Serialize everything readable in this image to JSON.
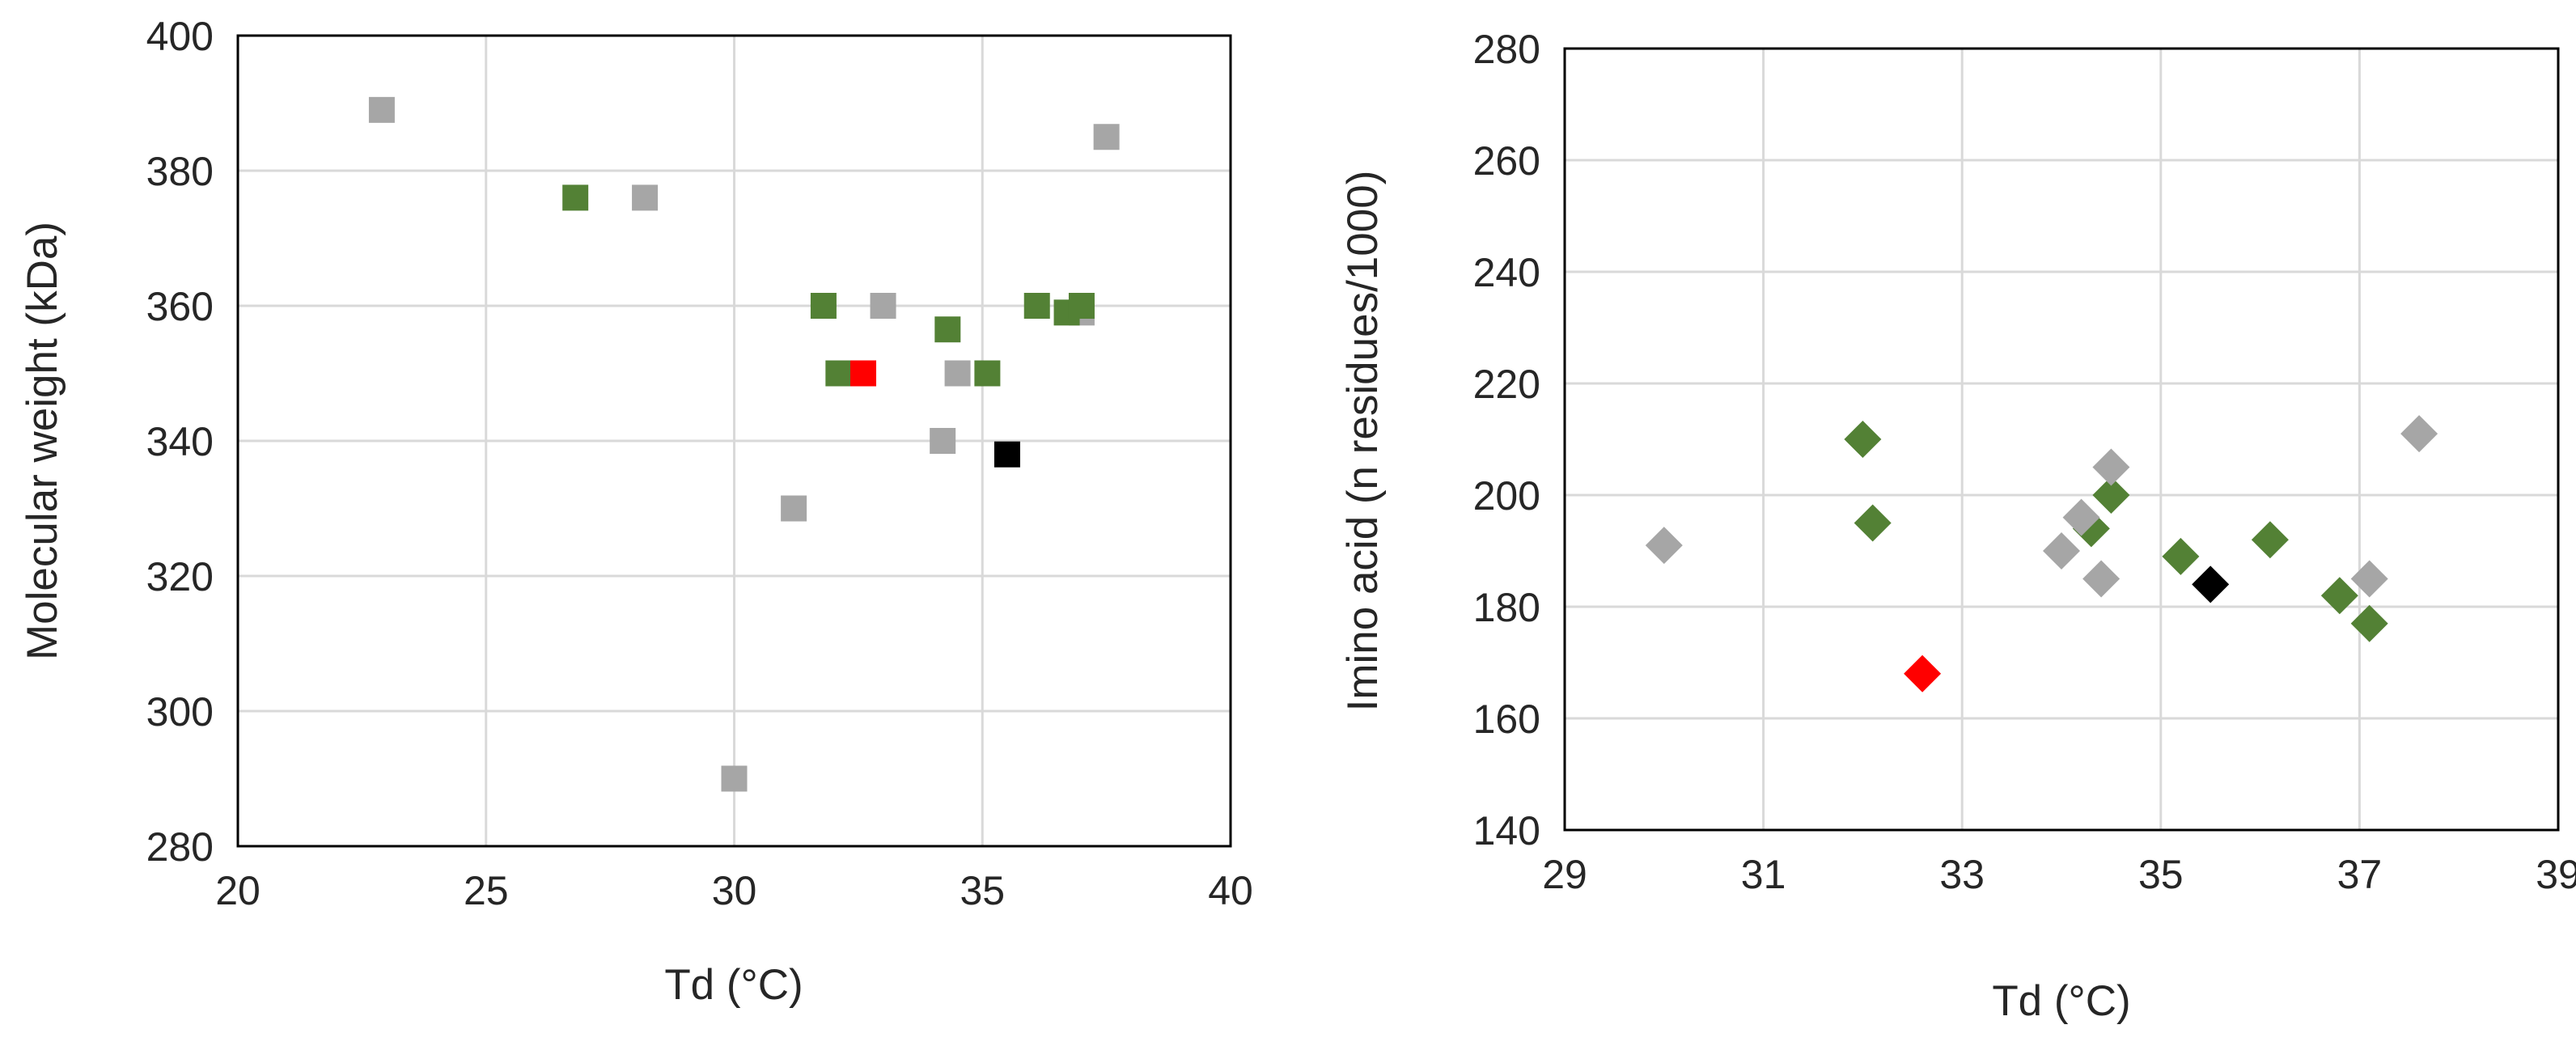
{
  "chart_data": [
    {
      "type": "scatter",
      "xlabel": "Td (°C)",
      "ylabel": "Molecular weight (kDa)",
      "xlim": [
        20,
        40
      ],
      "ylim": [
        280,
        400
      ],
      "x_ticks": [
        20,
        25,
        30,
        35,
        40
      ],
      "y_ticks": [
        280,
        300,
        320,
        340,
        360,
        380,
        400
      ],
      "marker": "square",
      "grid": true,
      "legend": "none",
      "colors": {
        "green": "#538135",
        "gray": "#a6a6a6",
        "red": "#ff0000",
        "black": "#000000"
      },
      "series": [
        {
          "color": "#a6a6a6",
          "points": [
            [
              22.9,
              389
            ],
            [
              28.2,
              376
            ],
            [
              33.0,
              360
            ],
            [
              34.5,
              350
            ],
            [
              37.0,
              359
            ],
            [
              37.5,
              385
            ],
            [
              34.2,
              340
            ],
            [
              31.2,
              330
            ],
            [
              30.0,
              290
            ]
          ]
        },
        {
          "color": "#538135",
          "points": [
            [
              26.8,
              376
            ],
            [
              31.8,
              360
            ],
            [
              32.1,
              350
            ],
            [
              34.3,
              356.5
            ],
            [
              35.1,
              350
            ],
            [
              36.1,
              360
            ],
            [
              36.7,
              359
            ],
            [
              37.0,
              360
            ]
          ]
        },
        {
          "color": "#ff0000",
          "points": [
            [
              32.6,
              350
            ]
          ]
        },
        {
          "color": "#000000",
          "points": [
            [
              35.5,
              338
            ]
          ]
        }
      ]
    },
    {
      "type": "scatter",
      "xlabel": "Td (°C)",
      "ylabel": "Imino acid  (n residues/1000)",
      "xlim": [
        29,
        39
      ],
      "ylim": [
        140,
        280
      ],
      "x_ticks": [
        29,
        31,
        33,
        35,
        37,
        39
      ],
      "y_ticks": [
        140,
        160,
        180,
        200,
        220,
        240,
        260,
        280
      ],
      "marker": "diamond",
      "grid": true,
      "legend": "none",
      "colors": {
        "green": "#538135",
        "gray": "#a6a6a6",
        "red": "#ff0000",
        "black": "#000000"
      },
      "series": [
        {
          "color": "#538135",
          "points": [
            [
              32.0,
              210
            ],
            [
              32.1,
              195
            ],
            [
              34.3,
              194
            ],
            [
              34.5,
              200
            ],
            [
              35.2,
              189
            ],
            [
              36.1,
              192
            ],
            [
              36.8,
              182
            ],
            [
              37.1,
              177
            ]
          ]
        },
        {
          "color": "#a6a6a6",
          "points": [
            [
              30.0,
              191
            ],
            [
              34.0,
              190
            ],
            [
              34.2,
              196
            ],
            [
              34.4,
              185
            ],
            [
              34.5,
              205
            ],
            [
              37.1,
              185
            ],
            [
              37.6,
              211
            ]
          ]
        },
        {
          "color": "#ff0000",
          "points": [
            [
              32.6,
              168
            ]
          ]
        },
        {
          "color": "#000000",
          "points": [
            [
              35.5,
              184
            ]
          ]
        }
      ]
    }
  ]
}
